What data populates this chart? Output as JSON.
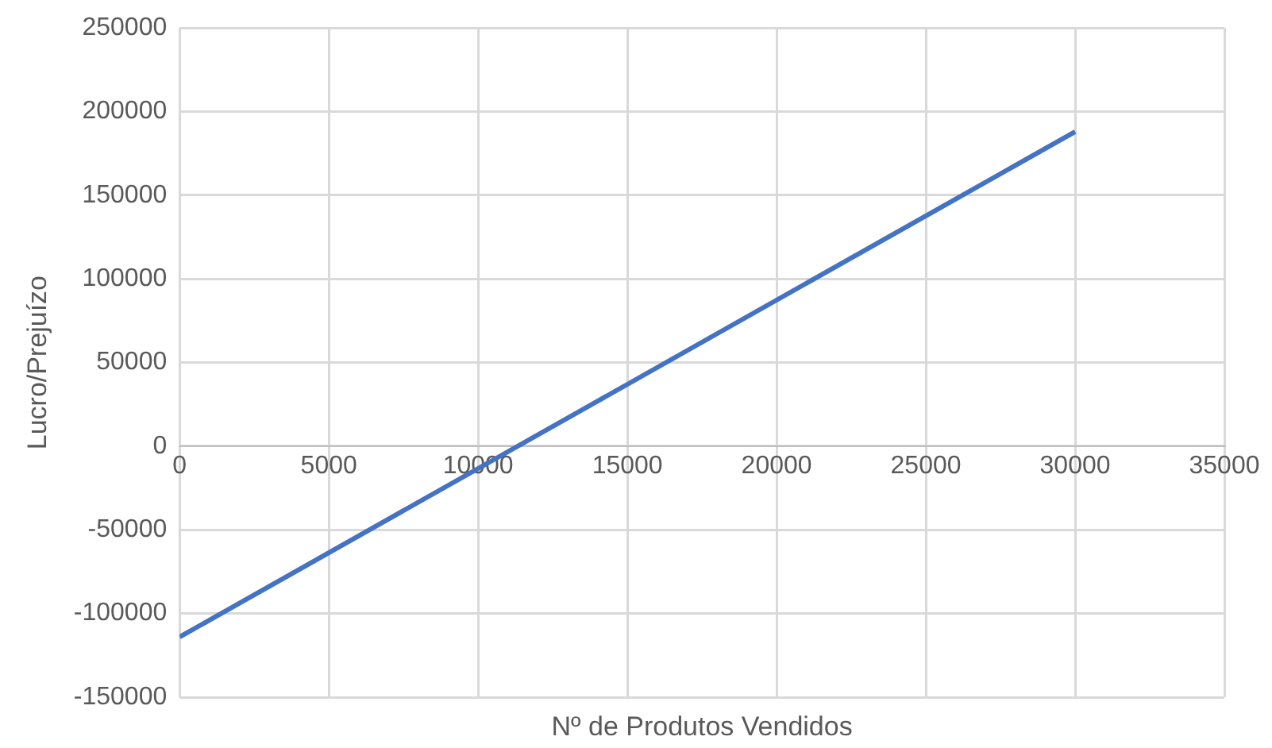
{
  "chart_data": {
    "type": "line",
    "xlabel": "Nº de Produtos Vendidos",
    "ylabel": "Lucro/Prejuízo",
    "x": [
      0,
      30000
    ],
    "series": [
      {
        "color": "#4472c4",
        "values": [
          -114000,
          188000
        ]
      }
    ],
    "xlim": [
      0,
      35000
    ],
    "xticks": [
      0,
      5000,
      10000,
      15000,
      20000,
      25000,
      30000,
      35000
    ],
    "ylim": [
      -150000,
      250000
    ],
    "yticks": [
      -150000,
      -100000,
      -50000,
      0,
      50000,
      100000,
      150000,
      200000,
      250000
    ],
    "grid": true,
    "legend": false,
    "marker": "none",
    "line_style": "solid"
  }
}
